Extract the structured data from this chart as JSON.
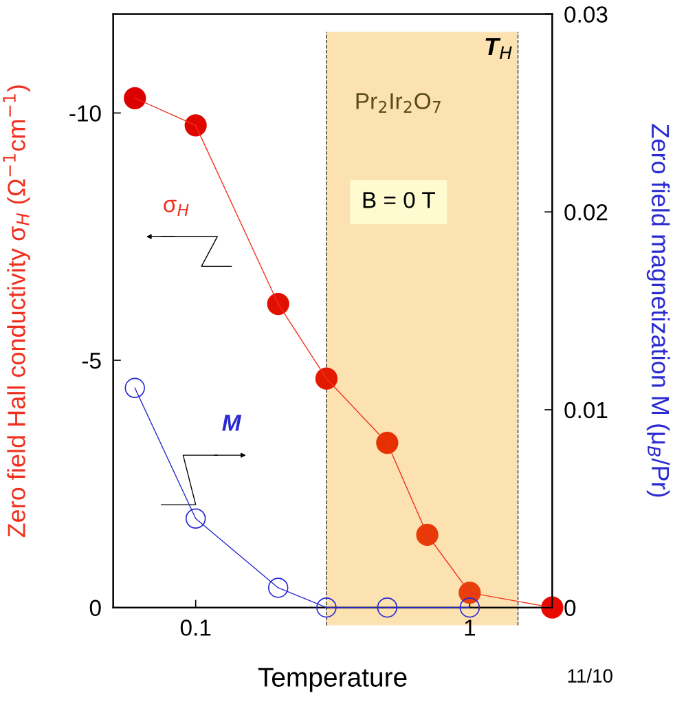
{
  "chart_data": {
    "type": "line",
    "xlabel": "Temperature",
    "ylabel": "Zero field Hall conductivity σ$_{H}$ (Ω$^{−1}$cm$^{−1}$)",
    "y2label": "Zero field magnetization M (μ$_{B}$/Pr)",
    "log": "x",
    "xlim": [
      0.05,
      2
    ],
    "xticks": [
      0.1,
      1
    ],
    "ylim": [
      0,
      -12
    ],
    "yticks": [
      0,
      {
        "value": -5,
        "label": "-5"
      },
      {
        "value": -10,
        "label": "-10"
      }
    ],
    "y2lim": [
      0,
      0.03
    ],
    "y2ticks": [
      0,
      0.01,
      0.02,
      0.03
    ],
    "marker": "circle",
    "legend": false,
    "grid": false,
    "series": [
      {
        "name": "σ$_{H}$",
        "color": "#f0301e",
        "colors": [
          "#dc0000",
          "#df0600",
          "#e21000",
          "#e41a00",
          "#e63000",
          "#e83a08",
          "#e8400c",
          "#e60a00"
        ],
        "x": [
          0.06,
          0.1,
          0.2,
          0.3,
          0.5,
          0.7,
          1,
          2
        ],
        "values": [
          -10.3,
          -9.75,
          -6.14,
          -4.63,
          -3.33,
          -1.47,
          -0.3,
          0
        ]
      },
      {
        "name": "M",
        "color": "#2a2ad0",
        "axis": "y2",
        "x": [
          0.06,
          0.1,
          0.2,
          0.3,
          0.5,
          1
        ],
        "values": [
          0.0111,
          0.0045,
          0.001,
          0,
          0,
          0
        ]
      }
    ],
    "bands": [
      {
        "axis": "x",
        "from": 0.3,
        "to": 1.5,
        "label": "T$_{H}$",
        "color": "#fbe2b0"
      }
    ],
    "ref_lines": [
      {
        "axis": "x",
        "value": 0.3,
        "color": "#333333",
        "line_style": "dashed"
      },
      {
        "axis": "x",
        "value": 1.5,
        "color": "#333333",
        "line_style": "dashed"
      }
    ],
    "annotations": [
      "Pr$_{2}$Ir$_{2}$O$_{7}$",
      "B = 0 T",
      "11/10"
    ]
  }
}
